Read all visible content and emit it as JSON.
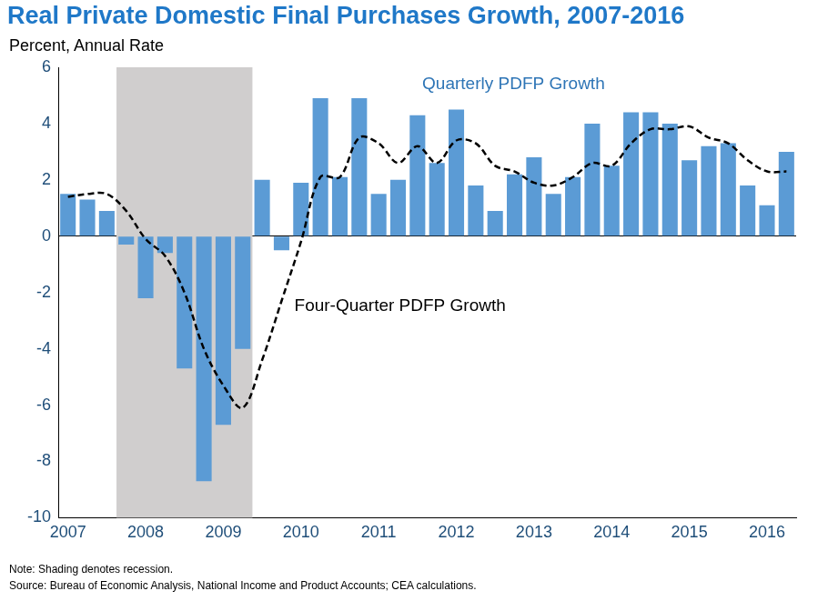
{
  "chart_data": {
    "type": "bar",
    "title": "Real Private Domestic Final Purchases Growth, 2007-2016",
    "subtitle": "Percent, Annual Rate",
    "note": "Note: Shading denotes recession.",
    "source": "Source: Bureau of Economic Analysis, National Income and Product Accounts; CEA calculations.",
    "categories": [
      "2007",
      null,
      null,
      null,
      "2008",
      null,
      null,
      null,
      "2009",
      null,
      null,
      null,
      "2010",
      null,
      null,
      null,
      "2011",
      null,
      null,
      null,
      "2012",
      null,
      null,
      null,
      "2013",
      null,
      null,
      null,
      "2014",
      null,
      null,
      null,
      "2015",
      null,
      null,
      null,
      "2016",
      null
    ],
    "series": [
      {
        "name": "Quarterly PDFP Growth",
        "type": "bar",
        "color": "#5b9bd5",
        "values": [
          1.5,
          1.3,
          0.9,
          -0.3,
          -2.2,
          -0.6,
          -4.7,
          -8.7,
          -6.7,
          -4.0,
          2.0,
          -0.5,
          1.9,
          4.9,
          2.1,
          4.9,
          1.5,
          2.0,
          4.3,
          2.6,
          4.5,
          1.8,
          0.9,
          2.2,
          2.8,
          1.5,
          2.1,
          4.0,
          2.5,
          4.4,
          4.4,
          4.0,
          2.7,
          3.2,
          3.3,
          1.8,
          1.1,
          3.0
        ]
      },
      {
        "name": "Four-Quarter PDFP Growth",
        "type": "line",
        "color": "#000000",
        "line_style": "dashed",
        "values": [
          1.4,
          1.5,
          1.5,
          0.9,
          -0.1,
          -0.7,
          -2.0,
          -4.0,
          -5.3,
          -6.1,
          -4.4,
          -2.3,
          -0.2,
          2.1,
          2.1,
          3.5,
          3.3,
          2.6,
          3.2,
          2.6,
          3.4,
          3.3,
          2.5,
          2.3,
          1.9,
          1.8,
          2.1,
          2.6,
          2.5,
          3.3,
          3.8,
          3.8,
          3.9,
          3.5,
          3.3,
          2.7,
          2.3,
          2.3
        ]
      }
    ],
    "recession": [
      false,
      false,
      false,
      true,
      true,
      true,
      true,
      true,
      true,
      true,
      false,
      false,
      false,
      false,
      false,
      false,
      false,
      false,
      false,
      false,
      false,
      false,
      false,
      false,
      false,
      false,
      false,
      false,
      false,
      false,
      false,
      false,
      false,
      false,
      false,
      false,
      false,
      false
    ],
    "ylim": [
      -10,
      6
    ],
    "yticks": [
      -10,
      -8,
      -6,
      -4,
      -2,
      0,
      2,
      4,
      6
    ],
    "grid": false
  }
}
